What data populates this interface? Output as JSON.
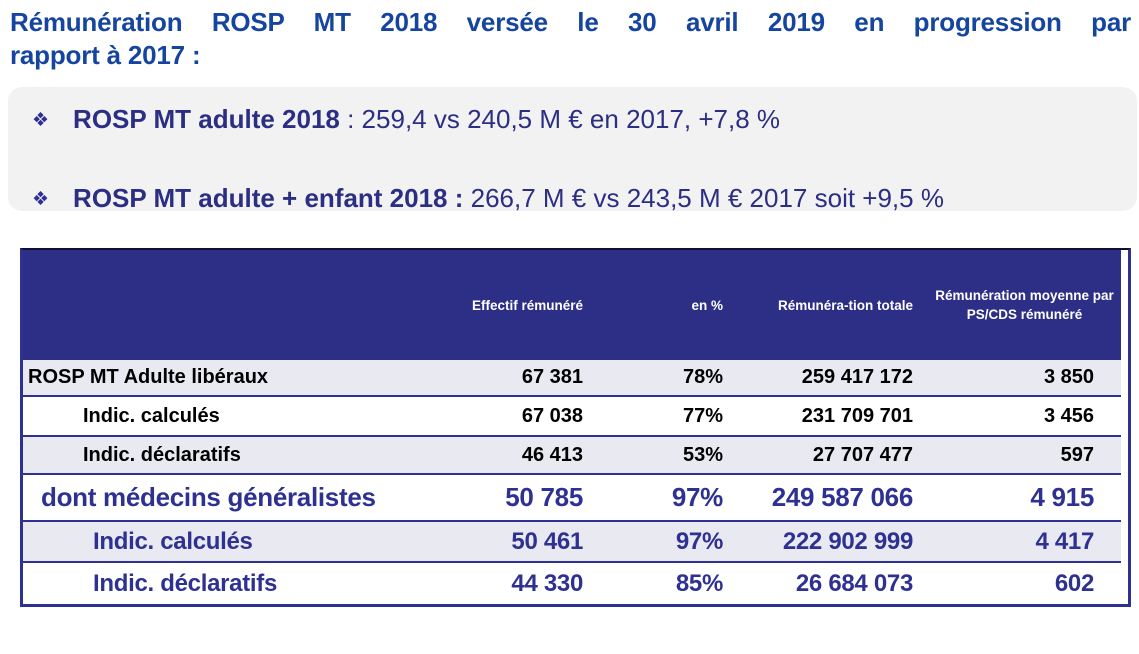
{
  "title": {
    "line1": "Rémunération ROSP MT 2018 versée le 30 avril 2019 en progression par",
    "line2": "rapport à 2017 :"
  },
  "bullets": [
    {
      "marker": "❖",
      "label": "ROSP MT adulte 2018",
      "value": " : 259,4 vs 240,5 M € en 2017, +7,8 %"
    },
    {
      "marker": "❖",
      "label": "ROSP MT adulte + enfant 2018 :",
      "value": " 266,7 M € vs 243,5 M € 2017 soit +9,5 %"
    }
  ],
  "table": {
    "headers": {
      "label": "",
      "effectif": "Effectif rémunéré",
      "pct": "en %",
      "total": "Rémunéra-tion totale",
      "moyenne": "Rémunération moyenne par PS/CDS rémunéré"
    },
    "rows": [
      {
        "label": "ROSP MT Adulte libéraux",
        "effectif": "67 381",
        "pct": "78%",
        "total": "259 417 172",
        "moyenne": "3 850"
      },
      {
        "label": "Indic. calculés",
        "effectif": "67 038",
        "pct": "77%",
        "total": "231 709 701",
        "moyenne": "3 456"
      },
      {
        "label": "Indic. déclaratifs",
        "effectif": "46 413",
        "pct": "53%",
        "total": "27 707 477",
        "moyenne": "597"
      },
      {
        "label": "dont médecins généralistes",
        "effectif": "50 785",
        "pct": "97%",
        "total": "249 587 066",
        "moyenne": "4 915"
      },
      {
        "label": "Indic. calculés",
        "effectif": "50 461",
        "pct": "97%",
        "total": "222 902 999",
        "moyenne": "4 417"
      },
      {
        "label": "Indic. déclaratifs",
        "effectif": "44 330",
        "pct": "85%",
        "total": "26 684 073",
        "moyenne": "602"
      }
    ]
  },
  "colors": {
    "title_blue": "#1645a0",
    "bullet_navy": "#2b2e83",
    "table_header_bg": "#2d2f87",
    "row_alt_bg": "#e9e9f1",
    "border_navy": "#2e3192",
    "highlight_box_bg": "#f2f2f2"
  }
}
